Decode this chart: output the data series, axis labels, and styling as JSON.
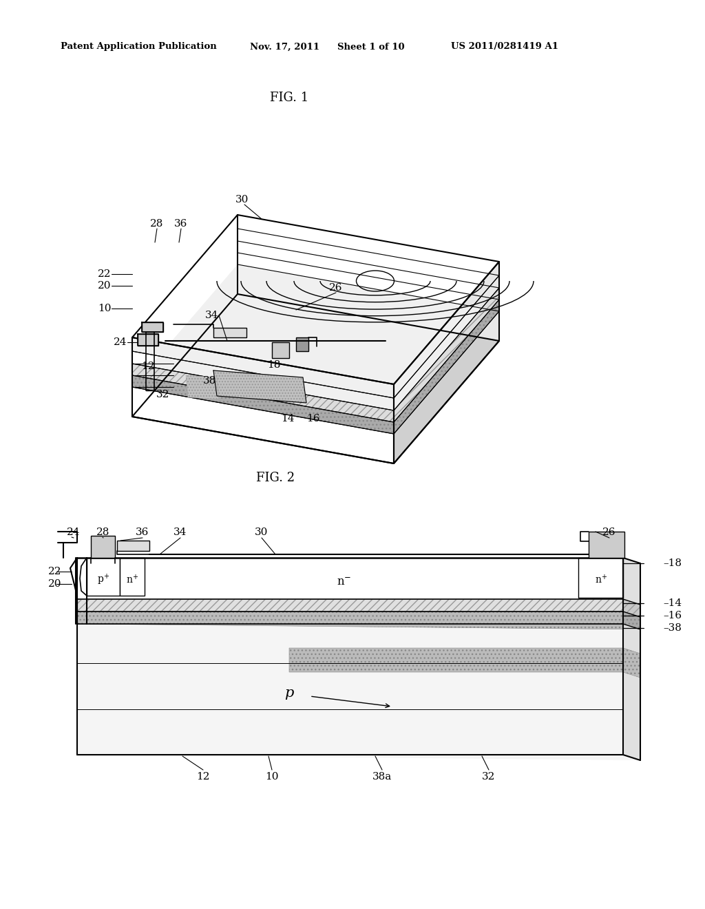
{
  "bg_color": "#ffffff",
  "line_color": "#000000",
  "header_text": "Patent Application Publication",
  "header_date": "Nov. 17, 2011",
  "header_sheet": "Sheet 1 of 10",
  "header_patent": "US 2011/0281419 A1",
  "fig1_title": "FIG. 1",
  "fig2_title": "FIG. 2",
  "label_fontsize": 11,
  "header_fontsize": 9.5,
  "title_fontsize": 13
}
